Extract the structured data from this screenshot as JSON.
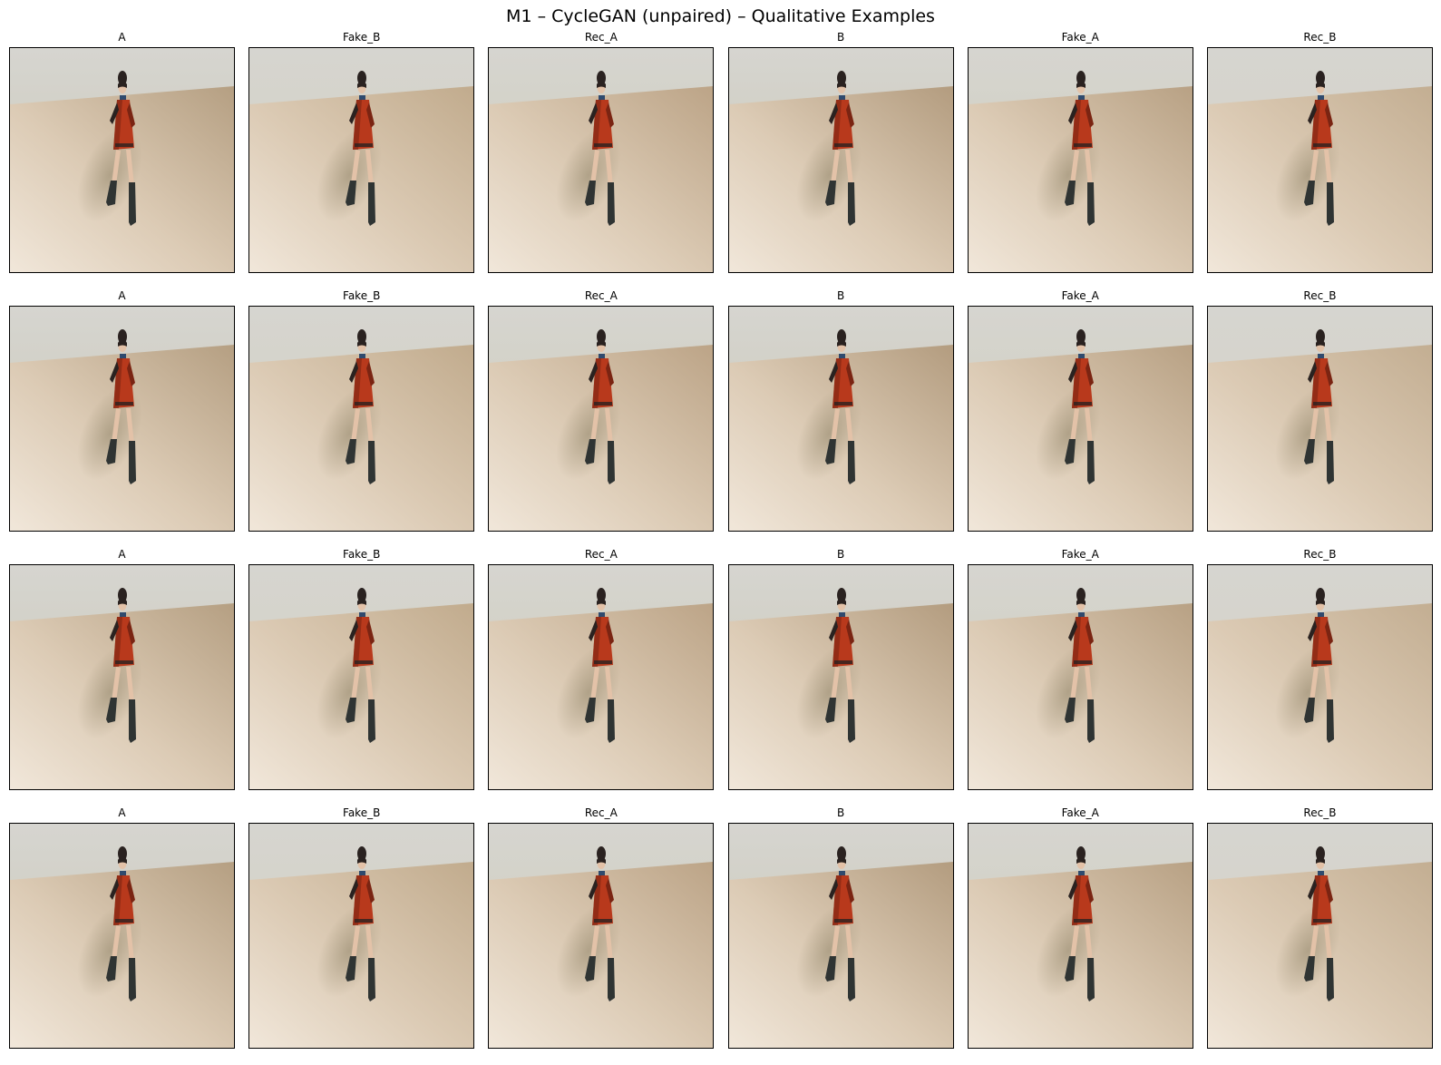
{
  "figure": {
    "title": "M1 – CycleGAN (unpaired) – Qualitative Examples"
  },
  "columns": [
    "A",
    "Fake_B",
    "Rec_A",
    "B",
    "Fake_A",
    "Rec_B"
  ],
  "rows": [
    {
      "cells": [
        "A",
        "Fake_B",
        "Rec_A",
        "B",
        "Fake_A",
        "Rec_B"
      ]
    },
    {
      "cells": [
        "A",
        "Fake_B",
        "Rec_A",
        "B",
        "Fake_A",
        "Rec_B"
      ]
    },
    {
      "cells": [
        "A",
        "Fake_B",
        "Rec_A",
        "B",
        "Fake_A",
        "Rec_B"
      ]
    },
    {
      "cells": [
        "A",
        "Fake_B",
        "Rec_A",
        "B",
        "Fake_A",
        "Rec_B"
      ]
    }
  ],
  "colors": {
    "wall_top": "#d6d5d0",
    "wall_bottom": "#c9c7b4",
    "floor_far": "#b59f82",
    "floor_near": "#f1e7da",
    "shadow": "#8e8266",
    "dress": "#b8391c",
    "dress_dark": "#7a2412",
    "hair": "#2a2220",
    "boots": "#2f3433",
    "skin": "#e3c2a8",
    "scarf": "#2f4a6e",
    "border": "#000000"
  }
}
